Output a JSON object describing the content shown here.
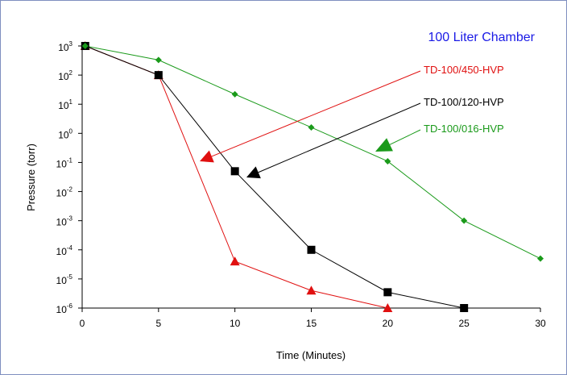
{
  "chart_data": {
    "type": "line",
    "title": "100 Liter Chamber",
    "title_color": "#1a1ae6",
    "xlabel": "Time (Minutes)",
    "ylabel": "Pressure (torr)",
    "xlim": [
      0,
      30
    ],
    "ylim_log10": [
      -6,
      3
    ],
    "y_scale": "log",
    "x_ticks": [
      0,
      5,
      10,
      15,
      20,
      25,
      30
    ],
    "y_tick_labels": [
      {
        "base": "10",
        "exp": "3"
      },
      {
        "base": "10",
        "exp": "2"
      },
      {
        "base": "10",
        "exp": "1"
      },
      {
        "base": "10",
        "exp": "0"
      },
      {
        "base": "10",
        "exp": "-1"
      },
      {
        "base": "10",
        "exp": "-2"
      },
      {
        "base": "10",
        "exp": "-3"
      },
      {
        "base": "10",
        "exp": "-4"
      },
      {
        "base": "10",
        "exp": "-5"
      },
      {
        "base": "10",
        "exp": "-6"
      }
    ],
    "grid": false,
    "series": [
      {
        "name": "TD-100/450-HVP",
        "color": "#e01010",
        "marker": "triangle",
        "x": [
          0.2,
          5,
          10,
          15,
          20
        ],
        "y": [
          1000,
          100,
          4e-05,
          4e-06,
          1e-06
        ]
      },
      {
        "name": "TD-100/120-HVP",
        "color": "#000000",
        "marker": "square",
        "x": [
          0.2,
          5,
          10,
          15,
          20,
          25
        ],
        "y": [
          1000,
          100,
          0.05,
          0.0001,
          3.5e-06,
          1e-06
        ]
      },
      {
        "name": "TD-100/016-HVP",
        "color": "#1a9a1a",
        "marker": "diamond",
        "x": [
          0.2,
          5,
          10,
          15,
          20,
          25,
          30
        ],
        "y": [
          1000,
          330,
          22,
          1.6,
          0.11,
          0.001,
          5e-05
        ]
      }
    ]
  }
}
